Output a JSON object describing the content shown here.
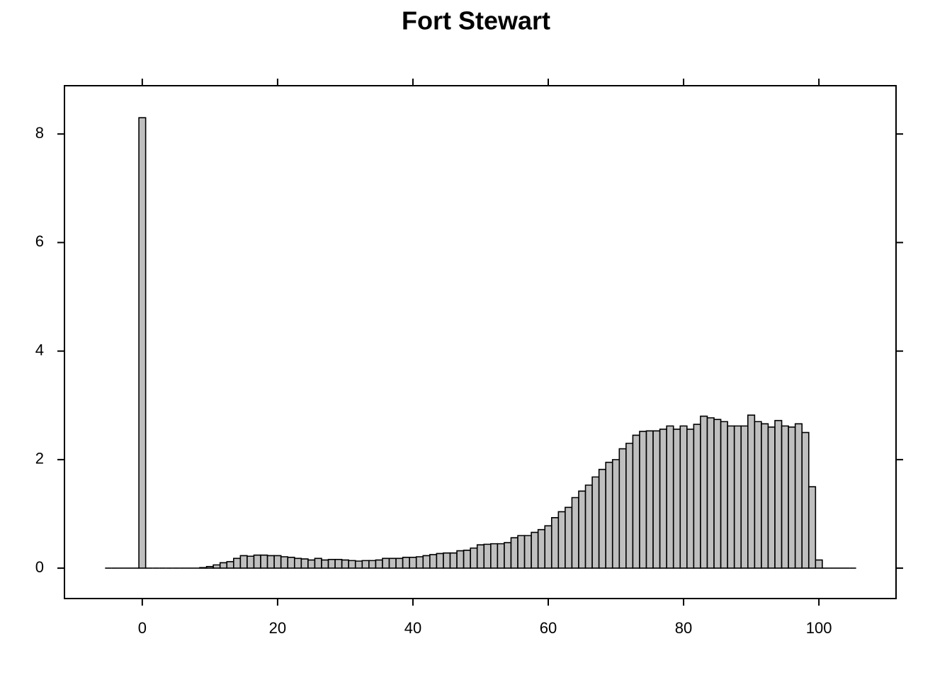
{
  "chart_data": {
    "type": "histogram",
    "title": "Fort Stewart",
    "bins": [
      -5.5,
      -4.5,
      -3.5,
      -2.5,
      -1.5,
      -0.5,
      0.5,
      1.5,
      2.5,
      3.5,
      4.5,
      5.5,
      6.5,
      7.5,
      8.5,
      9.5,
      10.5,
      11.5,
      12.5,
      13.5,
      14.5,
      15.5,
      16.5,
      17.5,
      18.5,
      19.5,
      20.5,
      21.5,
      22.5,
      23.5,
      24.5,
      25.5,
      26.5,
      27.5,
      28.5,
      29.5,
      30.5,
      31.5,
      32.5,
      33.5,
      34.5,
      35.5,
      36.5,
      37.5,
      38.5,
      39.5,
      40.5,
      41.5,
      42.5,
      43.5,
      44.5,
      45.5,
      46.5,
      47.5,
      48.5,
      49.5,
      50.5,
      51.5,
      52.5,
      53.5,
      54.5,
      55.5,
      56.5,
      57.5,
      58.5,
      59.5,
      60.5,
      61.5,
      62.5,
      63.5,
      64.5,
      65.5,
      66.5,
      67.5,
      68.5,
      69.5,
      70.5,
      71.5,
      72.5,
      73.5,
      74.5,
      75.5,
      76.5,
      77.5,
      78.5,
      79.5,
      80.5,
      81.5,
      82.5,
      83.5,
      84.5,
      85.5,
      86.5,
      87.5,
      88.5,
      89.5,
      90.5,
      91.5,
      92.5,
      93.5,
      94.5,
      95.5,
      96.5,
      97.5,
      98.5,
      99.5,
      100.5,
      101.5,
      102.5,
      103.5,
      104.5,
      105.5
    ],
    "values": [
      0,
      0,
      0,
      0,
      0,
      8.3,
      0,
      0,
      0,
      0,
      0,
      0,
      0,
      0,
      0.01,
      0.03,
      0.06,
      0.1,
      0.12,
      0.18,
      0.23,
      0.22,
      0.24,
      0.24,
      0.23,
      0.23,
      0.21,
      0.2,
      0.18,
      0.17,
      0.15,
      0.18,
      0.15,
      0.16,
      0.16,
      0.15,
      0.14,
      0.13,
      0.14,
      0.14,
      0.15,
      0.18,
      0.18,
      0.18,
      0.2,
      0.2,
      0.21,
      0.23,
      0.25,
      0.27,
      0.28,
      0.28,
      0.32,
      0.33,
      0.37,
      0.43,
      0.44,
      0.45,
      0.45,
      0.47,
      0.56,
      0.6,
      0.6,
      0.66,
      0.71,
      0.78,
      0.93,
      1.04,
      1.12,
      1.3,
      1.42,
      1.53,
      1.68,
      1.82,
      1.95,
      2.0,
      2.2,
      2.3,
      2.45,
      2.52,
      2.53,
      2.53,
      2.56,
      2.62,
      2.56,
      2.62,
      2.56,
      2.65,
      2.8,
      2.77,
      2.74,
      2.7,
      2.62,
      2.62,
      2.62,
      2.82,
      2.7,
      2.66,
      2.6,
      2.72,
      2.62,
      2.6,
      2.66,
      2.5,
      1.5,
      0.15,
      0,
      0,
      0,
      0,
      0
    ],
    "color": "#bfbfbf",
    "xlim": [
      -11.5,
      111.4
    ],
    "ylim": [
      -0.56,
      8.89
    ],
    "xticks": [
      0,
      20,
      40,
      60,
      80,
      100
    ],
    "yticks": [
      0,
      2,
      4,
      6,
      8
    ]
  }
}
